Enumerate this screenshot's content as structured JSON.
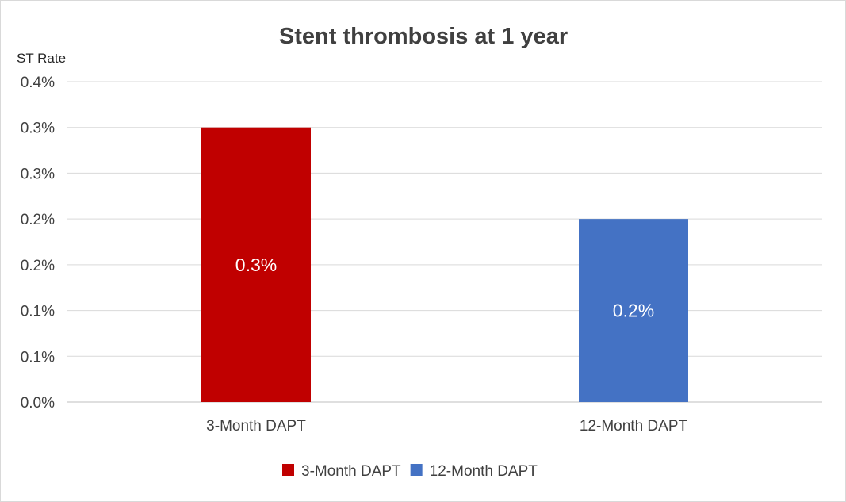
{
  "chart_data": {
    "type": "bar",
    "title": "Stent thrombosis at 1 year",
    "ylabel": "ST Rate",
    "xlabel": "",
    "categories": [
      "3-Month DAPT",
      "12-Month DAPT"
    ],
    "values": [
      0.3,
      0.2
    ],
    "value_labels": [
      "0.3%",
      "0.2%"
    ],
    "colors": [
      "#c00000",
      "#4472c4"
    ],
    "ylim": [
      0,
      0.35
    ],
    "y_ticks": [
      0,
      0.05,
      0.1,
      0.15,
      0.2,
      0.25,
      0.3,
      0.35
    ],
    "y_tick_labels": [
      "0.0%",
      "0.1%",
      "0.1%",
      "0.2%",
      "0.2%",
      "0.3%",
      "0.3%",
      "0.4%"
    ],
    "grid": true,
    "legend": {
      "position": "bottom",
      "entries": [
        "3-Month DAPT",
        "12-Month DAPT"
      ]
    }
  }
}
